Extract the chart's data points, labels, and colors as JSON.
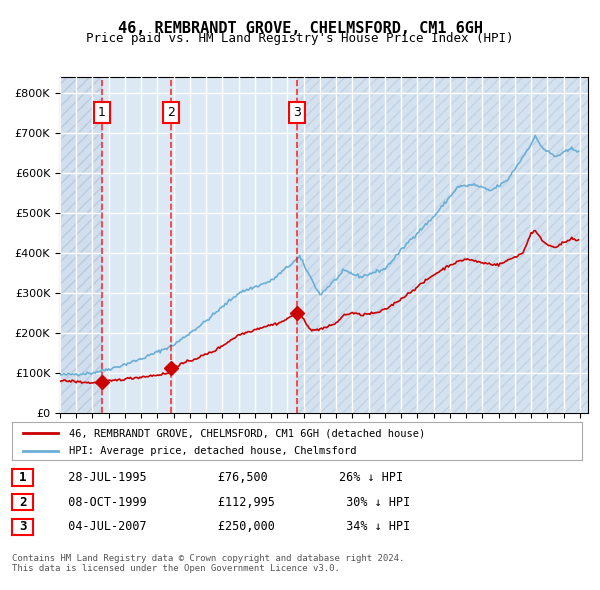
{
  "title": "46, REMBRANDT GROVE, CHELMSFORD, CM1 6GH",
  "subtitle": "Price paid vs. HM Land Registry's House Price Index (HPI)",
  "bg_color": "#dce9f5",
  "plot_bg_color": "#dce9f5",
  "hatch_color": "#c0d0e8",
  "grid_color": "#ffffff",
  "red_line_color": "#cc0000",
  "blue_line_color": "#6baed6",
  "sale_dates": [
    "1995-07-28",
    "1999-10-08",
    "2007-07-04"
  ],
  "sale_prices": [
    76500,
    112995,
    250000
  ],
  "sale_labels": [
    "1",
    "2",
    "3"
  ],
  "legend_entries": [
    "46, REMBRANDT GROVE, CHELMSFORD, CM1 6GH (detached house)",
    "HPI: Average price, detached house, Chelmsford"
  ],
  "table_rows": [
    [
      "1",
      "28-JUL-1995",
      "£76,500",
      "26% ↓ HPI"
    ],
    [
      "2",
      "08-OCT-1999",
      "£112,995",
      "30% ↓ HPI"
    ],
    [
      "3",
      "04-JUL-2007",
      "£250,000",
      "34% ↓ HPI"
    ]
  ],
  "footer": "Contains HM Land Registry data © Crown copyright and database right 2024.\nThis data is licensed under the Open Government Licence v3.0.",
  "ylabel_ticks": [
    "£0",
    "£100K",
    "£200K",
    "£300K",
    "£400K",
    "£500K",
    "£600K",
    "£700K",
    "£800K"
  ],
  "ylim": [
    0,
    840000
  ],
  "xlim_start": 1993.0,
  "xlim_end": 2025.5
}
